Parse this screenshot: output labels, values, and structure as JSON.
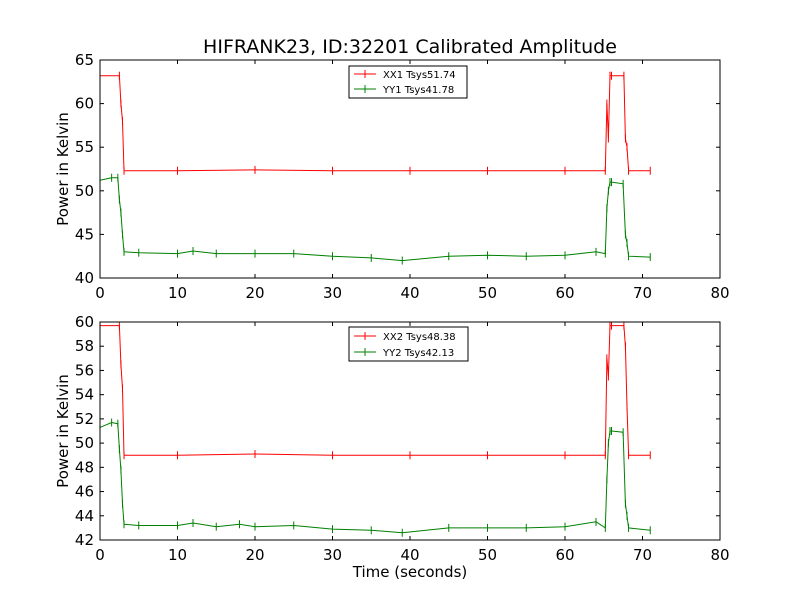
{
  "figure_title": "HIFRANK23, ID:32201 Calibrated Amplitude",
  "colors": {
    "xx": "#ff0000",
    "yy": "#008000",
    "axis": "#000000",
    "background": "#ffffff"
  },
  "chart_data": [
    {
      "type": "line",
      "title": "HIFRANK23, ID:32201 Calibrated Amplitude",
      "xlabel": "",
      "ylabel": "Power in Kelvin",
      "xlim": [
        0,
        80
      ],
      "ylim": [
        40,
        65
      ],
      "xticks": [
        "0",
        "10",
        "20",
        "30",
        "40",
        "50",
        "60",
        "70",
        "80"
      ],
      "yticks": [
        "40",
        "45",
        "50",
        "55",
        "60",
        "65"
      ],
      "grid": false,
      "legend_position": "top-center",
      "series": [
        {
          "name": "XX1 Tsys51.74",
          "color": "#ff0000",
          "x": [
            0,
            2.5,
            2.7,
            2.9,
            3.1,
            10,
            20,
            30,
            40,
            50,
            60,
            65.2,
            65.4,
            65.6,
            65.8,
            66,
            67.6,
            67.8,
            68,
            68.2,
            71
          ],
          "y": [
            63.2,
            63.2,
            60,
            58,
            52.3,
            52.3,
            52.4,
            52.3,
            52.3,
            52.3,
            52.3,
            52.3,
            60,
            56,
            63.2,
            63.2,
            63.2,
            56,
            55,
            52.3,
            52.3
          ]
        },
        {
          "name": "YY1 Tsys41.78",
          "color": "#008000",
          "x": [
            0,
            1.5,
            2.3,
            2.5,
            2.7,
            2.9,
            3.1,
            5,
            10,
            12,
            15,
            20,
            25,
            30,
            35,
            39,
            45,
            50,
            55,
            60,
            64,
            65.2,
            65.4,
            65.6,
            65.8,
            66,
            67.5,
            67.8,
            68,
            68.2,
            71
          ],
          "y": [
            51.2,
            51.5,
            51.5,
            49,
            47.5,
            45,
            43,
            42.9,
            42.8,
            43.1,
            42.8,
            42.8,
            42.8,
            42.5,
            42.3,
            42.0,
            42.5,
            42.6,
            42.5,
            42.6,
            43,
            42.8,
            48,
            50,
            51,
            51,
            50.8,
            45,
            44,
            42.5,
            42.4
          ]
        }
      ]
    },
    {
      "type": "line",
      "title": "",
      "xlabel": "Time (seconds)",
      "ylabel": "Power in Kelvin",
      "xlim": [
        0,
        80
      ],
      "ylim": [
        42,
        60
      ],
      "xticks": [
        "0",
        "10",
        "20",
        "30",
        "40",
        "50",
        "60",
        "70",
        "80"
      ],
      "yticks": [
        "42",
        "44",
        "46",
        "48",
        "50",
        "52",
        "54",
        "56",
        "58",
        "60"
      ],
      "grid": false,
      "legend_position": "top-center",
      "series": [
        {
          "name": "XX2 Tsys48.38",
          "color": "#ff0000",
          "x": [
            0,
            2.5,
            2.7,
            2.9,
            3.1,
            10,
            20,
            30,
            40,
            50,
            60,
            65.2,
            65.4,
            65.6,
            65.8,
            66,
            67.6,
            67.8,
            68,
            68.2,
            71
          ],
          "y": [
            59.7,
            59.7,
            56.5,
            54.5,
            49,
            49,
            49.1,
            49,
            49,
            49,
            49,
            49,
            57,
            55.5,
            59.7,
            59.7,
            59.7,
            58,
            53,
            49,
            49
          ]
        },
        {
          "name": "YY2 Tsys42.13",
          "color": "#008000",
          "x": [
            0,
            1.5,
            2.3,
            2.5,
            2.7,
            2.9,
            3.1,
            5,
            10,
            12,
            15,
            18,
            20,
            25,
            30,
            35,
            39,
            45,
            50,
            55,
            60,
            64,
            65.2,
            65.4,
            65.6,
            65.8,
            66,
            67.5,
            67.8,
            68,
            68.2,
            71
          ],
          "y": [
            51.3,
            51.7,
            51.6,
            49.5,
            47.8,
            45,
            43.3,
            43.2,
            43.2,
            43.4,
            43.1,
            43.3,
            43.1,
            43.2,
            42.9,
            42.8,
            42.6,
            43,
            43,
            43,
            43.1,
            43.5,
            43,
            47,
            50,
            51,
            51,
            50.9,
            45,
            44,
            43,
            42.8
          ]
        }
      ]
    }
  ]
}
